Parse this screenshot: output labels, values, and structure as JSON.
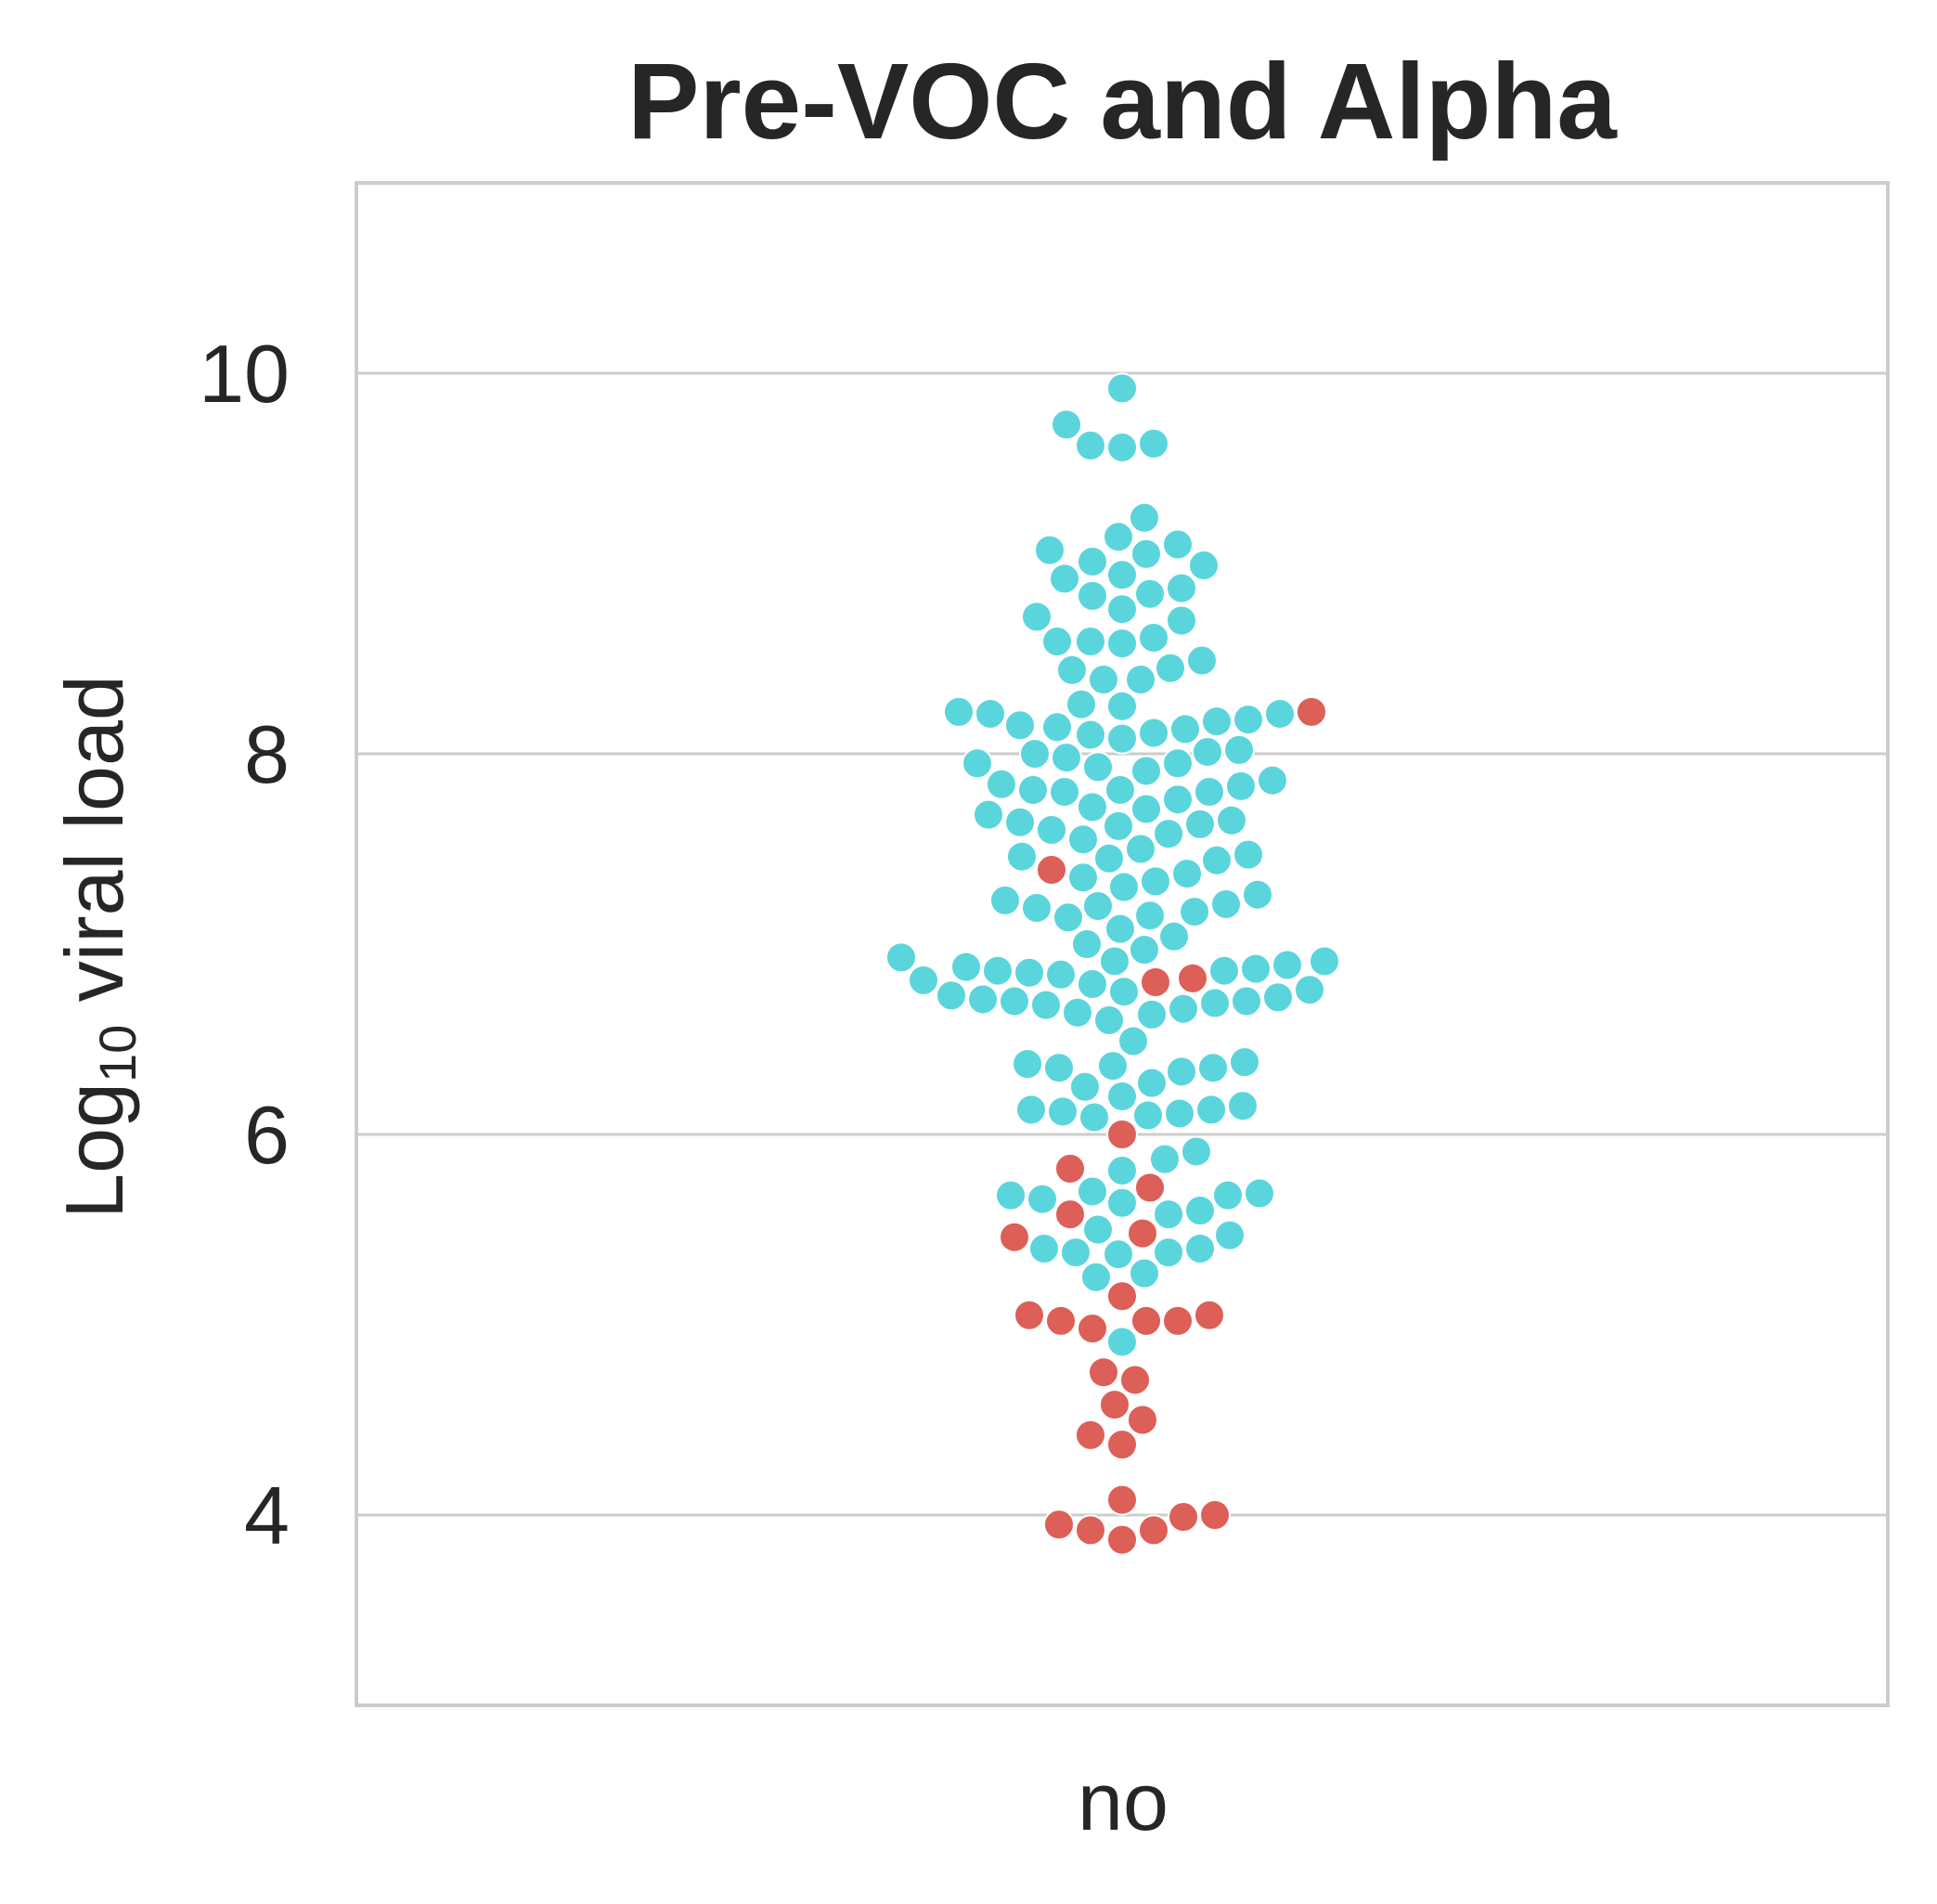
{
  "chart_data": {
    "type": "scatter",
    "subtype": "swarm",
    "title": "Pre-VOC and Alpha",
    "xlabel": "",
    "ylabel": {
      "text": "Log",
      "subscript": "10",
      "suffix": " viral load"
    },
    "categories": [
      "no"
    ],
    "yticks": [
      "4",
      "6",
      "8",
      "10"
    ],
    "ytick_values": [
      4,
      6,
      8,
      10
    ],
    "ylim": [
      3.0,
      11.0
    ],
    "grid": "horizontal",
    "legend": "none",
    "colors": {
      "high": "#5bd5dc",
      "low": "#dc5f58",
      "grid": "#cccccc",
      "frame": "#cccccc",
      "text": "#262626"
    },
    "series": [
      {
        "color": "#5bd5dc",
        "values": [
          9.92,
          9.73,
          9.63,
          9.62,
          9.61,
          9.24,
          9.14,
          9.1,
          9.07,
          9.05,
          9.01,
          8.99,
          8.94,
          8.92,
          8.87,
          8.84,
          8.83,
          8.76,
          8.72,
          8.7,
          8.61,
          8.59,
          8.59,
          8.58,
          8.49,
          8.45,
          8.44,
          8.39,
          8.39,
          8.26,
          8.25,
          8.22,
          8.21,
          8.21,
          8.18,
          8.17,
          8.15,
          8.14,
          8.13,
          8.11,
          8.1,
          8.08,
          8.02,
          8.01,
          8.0,
          7.98,
          7.95,
          7.95,
          7.93,
          7.91,
          7.86,
          7.84,
          7.83,
          7.81,
          7.81,
          7.8,
          7.8,
          7.76,
          7.72,
          7.71,
          7.68,
          7.65,
          7.64,
          7.63,
          7.62,
          7.6,
          7.58,
          7.55,
          7.5,
          7.47,
          7.46,
          7.45,
          7.44,
          7.37,
          7.35,
          7.33,
          7.3,
          7.26,
          7.23,
          7.21,
          7.2,
          7.19,
          7.17,
          7.15,
          7.14,
          7.08,
          7.04,
          7.0,
          6.97,
          6.93,
          6.91,
          6.91,
          6.89,
          6.88,
          6.87,
          6.86,
          6.86,
          6.85,
          6.84,
          6.81,
          6.79,
          6.76,
          6.75,
          6.73,
          6.72,
          6.71,
          6.7,
          6.7,
          6.69,
          6.68,
          6.66,
          6.64,
          6.63,
          6.6,
          6.49,
          6.38,
          6.37,
          6.36,
          6.35,
          6.35,
          6.33,
          6.27,
          6.25,
          6.2,
          6.15,
          6.13,
          6.13,
          6.12,
          6.11,
          6.1,
          6.09,
          5.91,
          5.87,
          5.81,
          5.7,
          5.69,
          5.68,
          5.68,
          5.66,
          5.64,
          5.6,
          5.58,
          5.5,
          5.47,
          5.4,
          5.4,
          5.38,
          5.38,
          5.37,
          5.27,
          5.25,
          4.91
        ]
      },
      {
        "color": "#dc5f58",
        "values": [
          8.22,
          7.39,
          6.82,
          6.8,
          6.0,
          5.82,
          5.72,
          5.58,
          5.48,
          5.46,
          5.15,
          5.05,
          5.05,
          5.02,
          5.02,
          5.02,
          4.98,
          4.75,
          4.71,
          4.58,
          4.5,
          4.42,
          4.37,
          4.08,
          4.0,
          3.99,
          3.95,
          3.92,
          3.92,
          3.87
        ]
      }
    ]
  }
}
